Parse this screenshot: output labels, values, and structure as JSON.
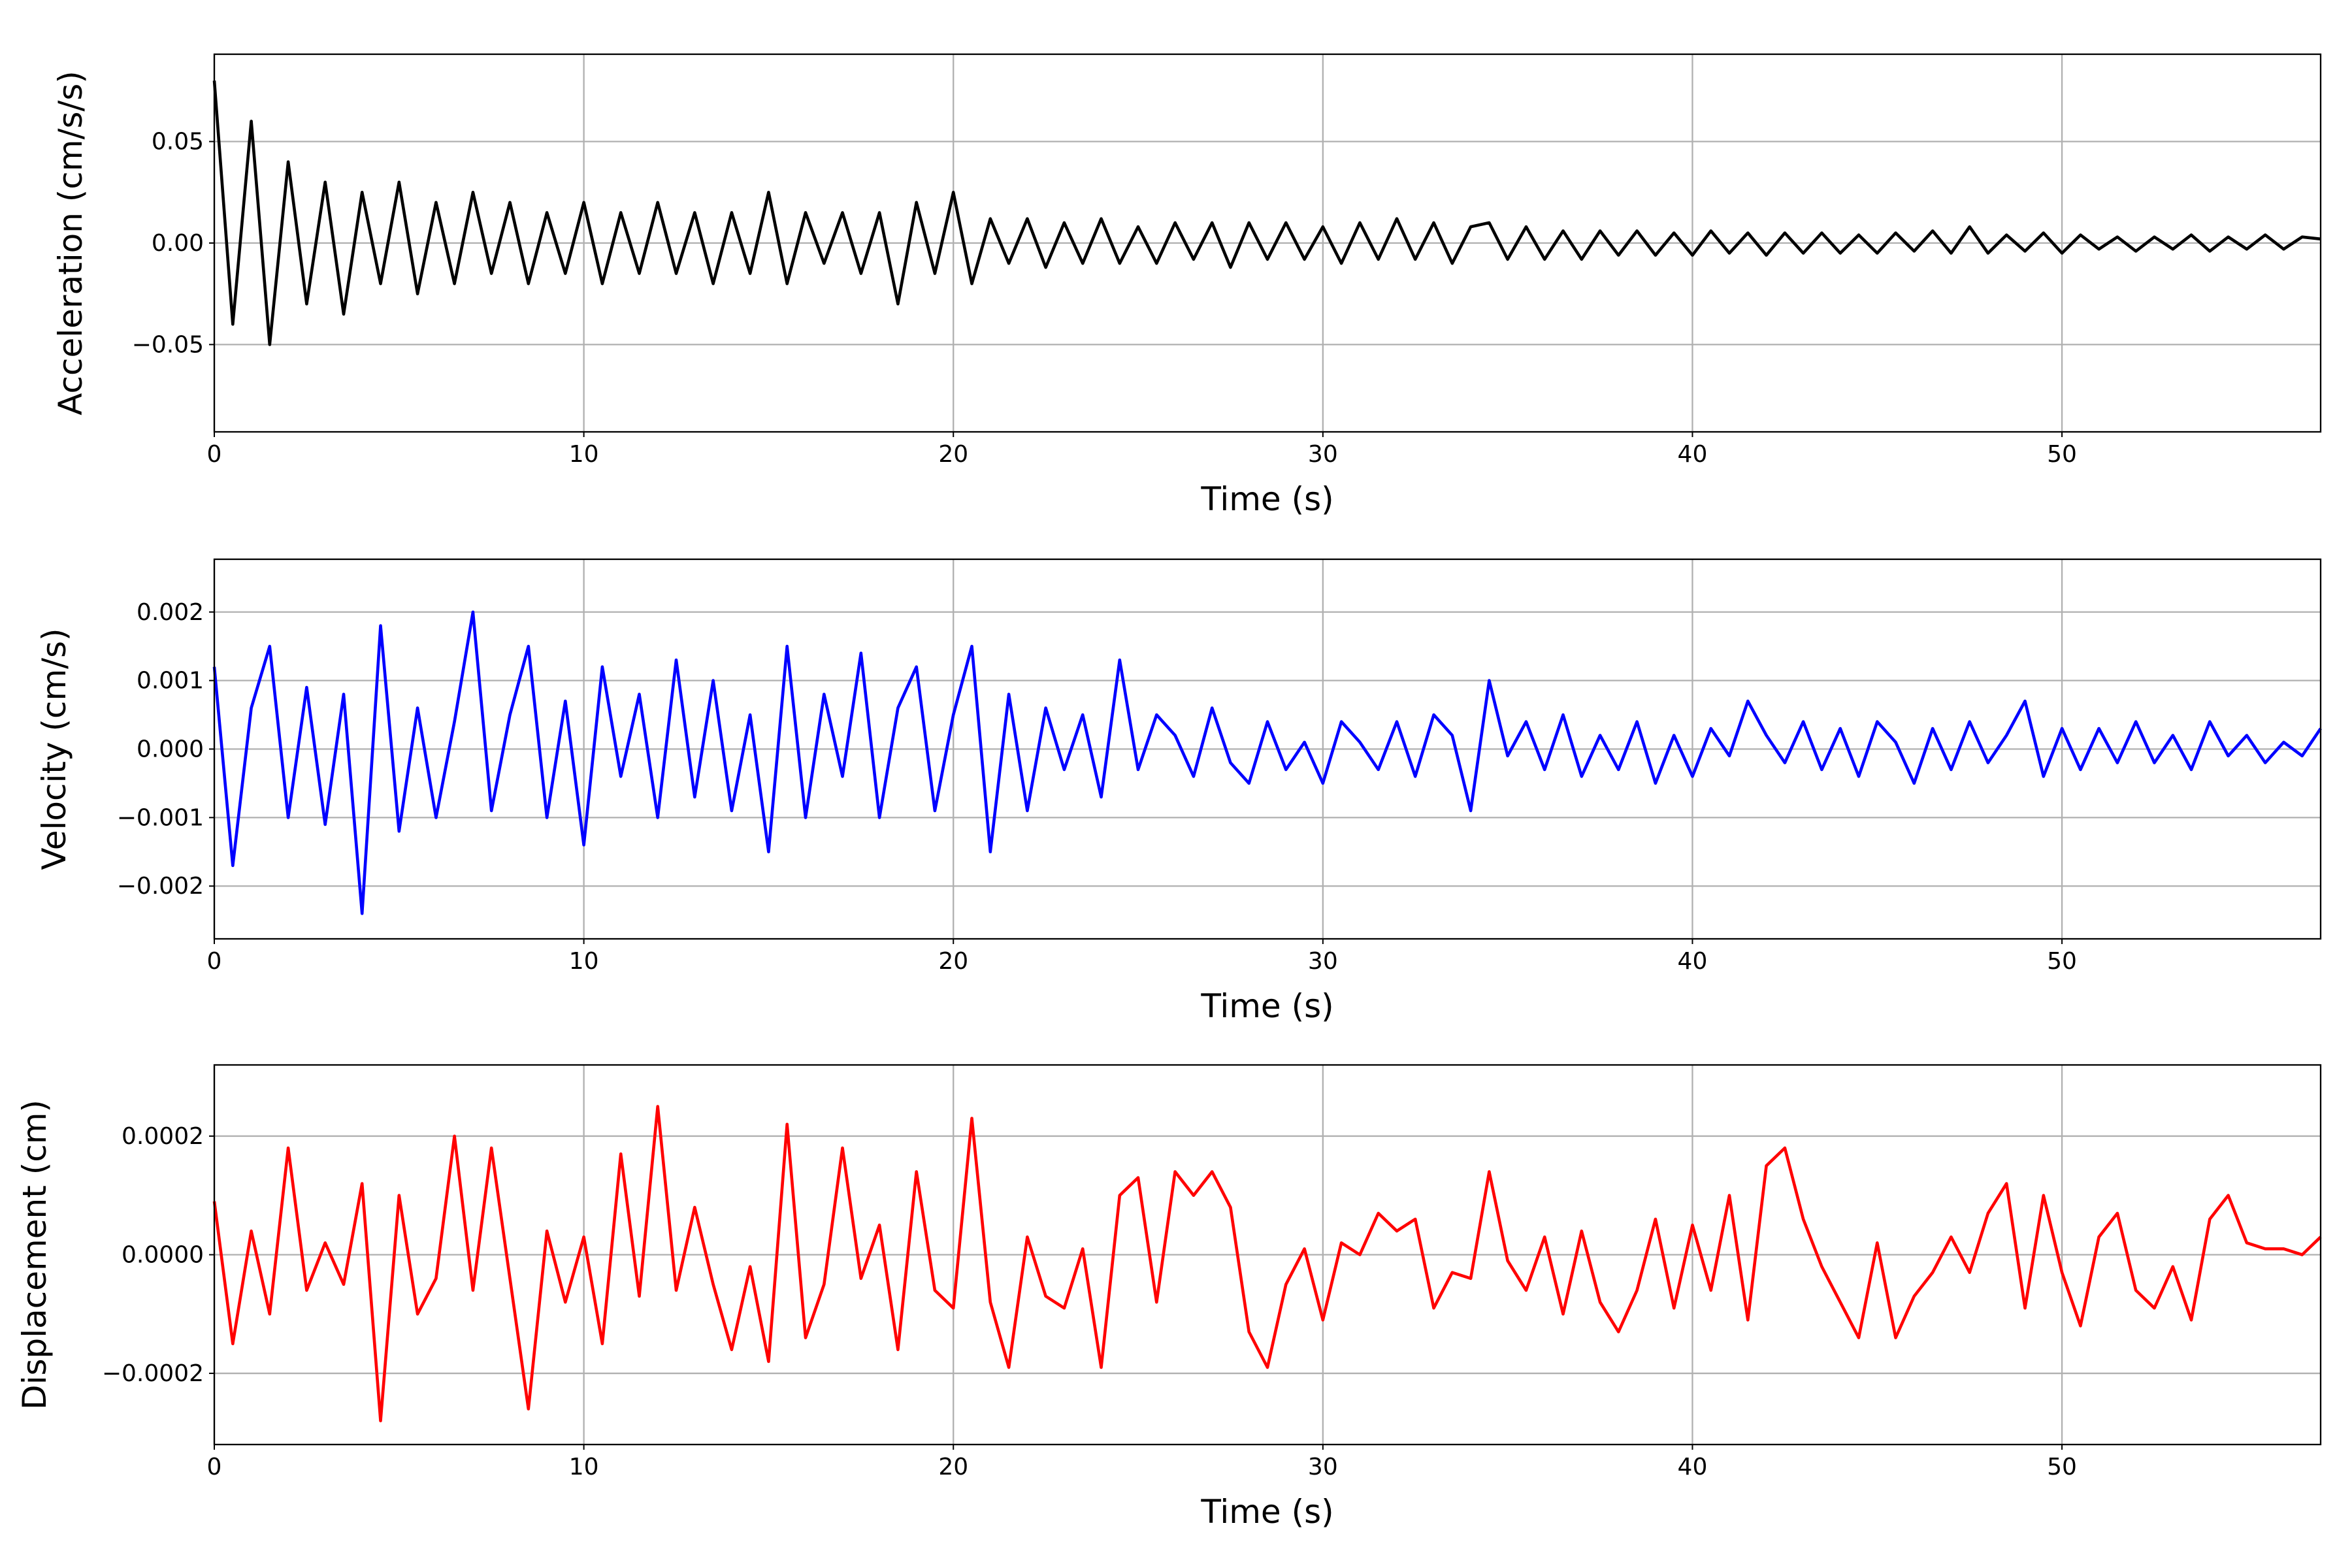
{
  "chart_data": [
    {
      "type": "line",
      "ylabel": "Acceleration (cm/s/s)",
      "xlabel": "Time (s)",
      "xlim": [
        0,
        57
      ],
      "xticks": [
        0,
        10,
        20,
        30,
        40,
        50
      ],
      "ylim": [
        -0.093,
        0.093
      ],
      "yticks": [
        {
          "value": -0.05,
          "label": "−0.05"
        },
        {
          "value": 0,
          "label": "0.00"
        },
        {
          "value": 0.05,
          "label": "0.05"
        }
      ],
      "grid": true,
      "x": [
        0,
        0.5,
        1,
        1.5,
        2,
        2.5,
        3,
        3.5,
        4,
        4.5,
        5,
        5.5,
        6,
        6.5,
        7,
        7.5,
        8,
        8.5,
        9,
        9.5,
        10,
        10.5,
        11,
        11.5,
        12,
        12.5,
        13,
        13.5,
        14,
        14.5,
        15,
        15.5,
        16,
        16.5,
        17,
        17.5,
        18,
        18.5,
        19,
        19.5,
        20,
        20.5,
        21,
        21.5,
        22,
        22.5,
        23,
        23.5,
        24,
        24.5,
        25,
        25.5,
        26,
        26.5,
        27,
        27.5,
        28,
        28.5,
        29,
        29.5,
        30,
        30.5,
        31,
        31.5,
        32,
        32.5,
        33,
        33.5,
        34,
        34.5,
        35,
        35.5,
        36,
        36.5,
        37,
        37.5,
        38,
        38.5,
        39,
        39.5,
        40,
        40.5,
        41,
        41.5,
        42,
        42.5,
        43,
        43.5,
        44,
        44.5,
        45,
        45.5,
        46,
        46.5,
        47,
        47.5,
        48,
        48.5,
        49,
        49.5,
        50,
        50.5,
        51,
        51.5,
        52,
        52.5,
        53,
        53.5,
        54,
        54.5,
        55,
        55.5,
        56,
        56.5,
        57
      ],
      "series": [
        {
          "color": "#000000",
          "values": [
            0.08,
            -0.04,
            0.06,
            -0.05,
            0.04,
            -0.03,
            0.03,
            -0.035,
            0.025,
            -0.02,
            0.03,
            -0.025,
            0.02,
            -0.02,
            0.025,
            -0.015,
            0.02,
            -0.02,
            0.015,
            -0.015,
            0.02,
            -0.02,
            0.015,
            -0.015,
            0.02,
            -0.015,
            0.015,
            -0.02,
            0.015,
            -0.015,
            0.025,
            -0.02,
            0.015,
            -0.01,
            0.015,
            -0.015,
            0.015,
            -0.03,
            0.02,
            -0.015,
            0.025,
            -0.02,
            0.012,
            -0.01,
            0.012,
            -0.012,
            0.01,
            -0.01,
            0.012,
            -0.01,
            0.008,
            -0.01,
            0.01,
            -0.008,
            0.01,
            -0.012,
            0.01,
            -0.008,
            0.01,
            -0.008,
            0.008,
            -0.01,
            0.01,
            -0.008,
            0.012,
            -0.008,
            0.01,
            -0.01,
            0.008,
            0.01,
            -0.008,
            0.008,
            -0.008,
            0.006,
            -0.008,
            0.006,
            -0.006,
            0.006,
            -0.006,
            0.005,
            -0.006,
            0.006,
            -0.005,
            0.005,
            -0.006,
            0.005,
            -0.005,
            0.005,
            -0.005,
            0.004,
            -0.005,
            0.005,
            -0.004,
            0.006,
            -0.005,
            0.008,
            -0.005,
            0.004,
            -0.004,
            0.005,
            -0.005,
            0.004,
            -0.003,
            0.003,
            -0.004,
            0.003,
            -0.003,
            0.004,
            -0.004,
            0.003,
            -0.003,
            0.004,
            -0.003,
            0.003,
            0.002
          ]
        }
      ]
    },
    {
      "type": "line",
      "ylabel": "Velocity (cm/s)",
      "xlabel": "Time (s)",
      "xlim": [
        0,
        57
      ],
      "xticks": [
        0,
        10,
        20,
        30,
        40,
        50
      ],
      "ylim": [
        -0.00277,
        0.00277
      ],
      "yticks": [
        {
          "value": -0.002,
          "label": "−0.002"
        },
        {
          "value": -0.001,
          "label": "−0.001"
        },
        {
          "value": 0,
          "label": "0.000"
        },
        {
          "value": 0.001,
          "label": "0.001"
        },
        {
          "value": 0.002,
          "label": "0.002"
        }
      ],
      "grid": true,
      "x": [
        0,
        0.5,
        1,
        1.5,
        2,
        2.5,
        3,
        3.5,
        4,
        4.5,
        5,
        5.5,
        6,
        6.5,
        7,
        7.5,
        8,
        8.5,
        9,
        9.5,
        10,
        10.5,
        11,
        11.5,
        12,
        12.5,
        13,
        13.5,
        14,
        14.5,
        15,
        15.5,
        16,
        16.5,
        17,
        17.5,
        18,
        18.5,
        19,
        19.5,
        20,
        20.5,
        21,
        21.5,
        22,
        22.5,
        23,
        23.5,
        24,
        24.5,
        25,
        25.5,
        26,
        26.5,
        27,
        27.5,
        28,
        28.5,
        29,
        29.5,
        30,
        30.5,
        31,
        31.5,
        32,
        32.5,
        33,
        33.5,
        34,
        34.5,
        35,
        35.5,
        36,
        36.5,
        37,
        37.5,
        38,
        38.5,
        39,
        39.5,
        40,
        40.5,
        41,
        41.5,
        42,
        42.5,
        43,
        43.5,
        44,
        44.5,
        45,
        45.5,
        46,
        46.5,
        47,
        47.5,
        48,
        48.5,
        49,
        49.5,
        50,
        50.5,
        51,
        51.5,
        52,
        52.5,
        53,
        53.5,
        54,
        54.5,
        55,
        55.5,
        56,
        56.5,
        57
      ],
      "series": [
        {
          "color": "#0000ff",
          "values": [
            0.0012,
            -0.0017,
            0.0006,
            0.0015,
            -0.001,
            0.0009,
            -0.0011,
            0.0008,
            -0.0024,
            0.0018,
            -0.0012,
            0.0006,
            -0.001,
            0.0004,
            0.002,
            -0.0009,
            0.0005,
            0.0015,
            -0.001,
            0.0007,
            -0.0014,
            0.0012,
            -0.0004,
            0.0008,
            -0.001,
            0.0013,
            -0.0007,
            0.001,
            -0.0009,
            0.0005,
            -0.0015,
            0.0015,
            -0.001,
            0.0008,
            -0.0004,
            0.0014,
            -0.001,
            0.0006,
            0.0012,
            -0.0009,
            0.0005,
            0.0015,
            -0.0015,
            0.0008,
            -0.0009,
            0.0006,
            -0.0003,
            0.0005,
            -0.0007,
            0.0013,
            -0.0003,
            0.0005,
            0.0002,
            -0.0004,
            0.0006,
            -0.0002,
            -0.0005,
            0.0004,
            -0.0003,
            0.0001,
            -0.0005,
            0.0004,
            0.0001,
            -0.0003,
            0.0004,
            -0.0004,
            0.0005,
            0.0002,
            -0.0009,
            0.001,
            -0.0001,
            0.0004,
            -0.0003,
            0.0005,
            -0.0004,
            0.0002,
            -0.0003,
            0.0004,
            -0.0005,
            0.0002,
            -0.0004,
            0.0003,
            -0.0001,
            0.0007,
            0.0002,
            -0.0002,
            0.0004,
            -0.0003,
            0.0003,
            -0.0004,
            0.0004,
            0.0001,
            -0.0005,
            0.0003,
            -0.0003,
            0.0004,
            -0.0002,
            0.0002,
            0.0007,
            -0.0004,
            0.0003,
            -0.0003,
            0.0003,
            -0.0002,
            0.0004,
            -0.0002,
            0.0002,
            -0.0003,
            0.0004,
            -0.0001,
            0.0002,
            -0.0002,
            0.0001,
            -0.0001,
            0.0003
          ]
        }
      ]
    },
    {
      "type": "line",
      "ylabel": "Displacement (cm)",
      "xlabel": "Time (s)",
      "xlim": [
        0,
        57
      ],
      "xticks": [
        0,
        10,
        20,
        30,
        40,
        50
      ],
      "ylim": [
        -0.00032,
        0.00032
      ],
      "yticks": [
        {
          "value": -0.0002,
          "label": "−0.0002"
        },
        {
          "value": 0,
          "label": "0.0000"
        },
        {
          "value": 0.0002,
          "label": "0.0002"
        }
      ],
      "grid": true,
      "x": [
        0,
        0.5,
        1,
        1.5,
        2,
        2.5,
        3,
        3.5,
        4,
        4.5,
        5,
        5.5,
        6,
        6.5,
        7,
        7.5,
        8,
        8.5,
        9,
        9.5,
        10,
        10.5,
        11,
        11.5,
        12,
        12.5,
        13,
        13.5,
        14,
        14.5,
        15,
        15.5,
        16,
        16.5,
        17,
        17.5,
        18,
        18.5,
        19,
        19.5,
        20,
        20.5,
        21,
        21.5,
        22,
        22.5,
        23,
        23.5,
        24,
        24.5,
        25,
        25.5,
        26,
        26.5,
        27,
        27.5,
        28,
        28.5,
        29,
        29.5,
        30,
        30.5,
        31,
        31.5,
        32,
        32.5,
        33,
        33.5,
        34,
        34.5,
        35,
        35.5,
        36,
        36.5,
        37,
        37.5,
        38,
        38.5,
        39,
        39.5,
        40,
        40.5,
        41,
        41.5,
        42,
        42.5,
        43,
        43.5,
        44,
        44.5,
        45,
        45.5,
        46,
        46.5,
        47,
        47.5,
        48,
        48.5,
        49,
        49.5,
        50,
        50.5,
        51,
        51.5,
        52,
        52.5,
        53,
        53.5,
        54,
        54.5,
        55,
        55.5,
        56,
        56.5,
        57
      ],
      "series": [
        {
          "color": "#ff0000",
          "values": [
            9e-05,
            -0.00015,
            4e-05,
            -0.0001,
            0.00018,
            -6e-05,
            2e-05,
            -5e-05,
            0.00012,
            -0.00028,
            0.0001,
            -0.0001,
            -4e-05,
            0.0002,
            -6e-05,
            0.00018,
            -4e-05,
            -0.00026,
            4e-05,
            -8e-05,
            3e-05,
            -0.00015,
            0.00017,
            -7e-05,
            0.00025,
            -6e-05,
            8e-05,
            -5e-05,
            -0.00016,
            -2e-05,
            -0.00018,
            0.00022,
            -0.00014,
            -5e-05,
            0.00018,
            -4e-05,
            5e-05,
            -0.00016,
            0.00014,
            -6e-05,
            -9e-05,
            0.00023,
            -8e-05,
            -0.00019,
            3e-05,
            -7e-05,
            -9e-05,
            1e-05,
            -0.00019,
            0.0001,
            0.00013,
            -8e-05,
            0.00014,
            0.0001,
            0.00014,
            8e-05,
            -0.00013,
            -0.00019,
            -5e-05,
            1e-05,
            -0.00011,
            2e-05,
            0.0,
            7e-05,
            4e-05,
            6e-05,
            -9e-05,
            -3e-05,
            -4e-05,
            0.00014,
            -1e-05,
            -6e-05,
            3e-05,
            -0.0001,
            4e-05,
            -8e-05,
            -0.00013,
            -6e-05,
            6e-05,
            -9e-05,
            5e-05,
            -6e-05,
            0.0001,
            -0.00011,
            0.00015,
            0.00018,
            6e-05,
            -2e-05,
            -8e-05,
            -0.00014,
            2e-05,
            -0.00014,
            -7e-05,
            -3e-05,
            3e-05,
            -3e-05,
            7e-05,
            0.00012,
            -9e-05,
            0.0001,
            -3e-05,
            -0.00012,
            3e-05,
            7e-05,
            -6e-05,
            -9e-05,
            -2e-05,
            -0.00011,
            6e-05,
            0.0001,
            2e-05,
            1e-05,
            1e-05,
            0.0,
            3e-05
          ]
        }
      ]
    }
  ]
}
